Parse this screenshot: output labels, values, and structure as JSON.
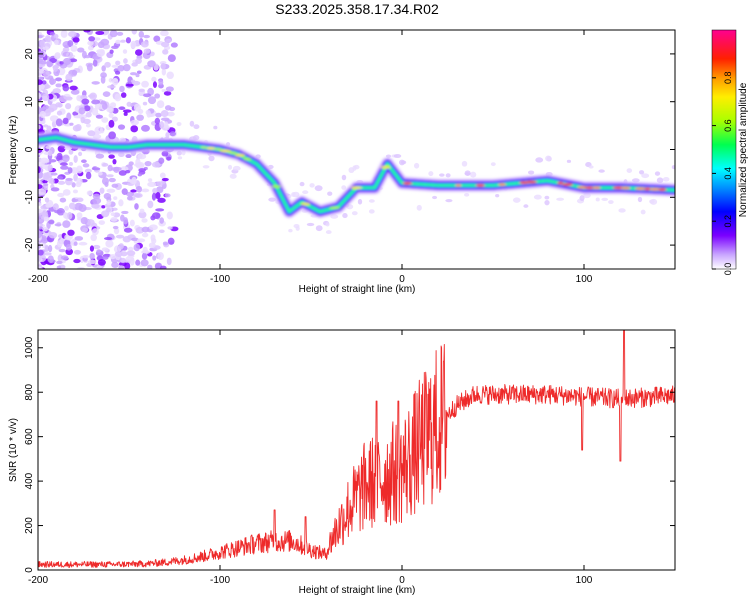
{
  "title": "S233.2025.358.17.34.R02",
  "chart_data": [
    {
      "type": "heatmap",
      "name": "spectrogram",
      "xlabel": "Height of straight line (km)",
      "ylabel": "Frequency (Hz)",
      "xlim": [
        -200,
        150
      ],
      "ylim": [
        -25,
        25
      ],
      "xticks": [
        -200,
        -100,
        0,
        100
      ],
      "yticks": [
        -20,
        -10,
        0,
        10,
        20
      ],
      "colorbar": {
        "label": "Normalized spectral amplitude",
        "range": [
          0,
          1
        ],
        "ticks": [
          0.0,
          0.2,
          0.4,
          0.6,
          0.8
        ]
      },
      "ridge": [
        {
          "x": -200,
          "y": 2.0
        },
        {
          "x": -190,
          "y": 2.5
        },
        {
          "x": -180,
          "y": 1.5
        },
        {
          "x": -170,
          "y": 1.0
        },
        {
          "x": -160,
          "y": 0.5
        },
        {
          "x": -150,
          "y": 0.5
        },
        {
          "x": -140,
          "y": 1.0
        },
        {
          "x": -130,
          "y": 1.0
        },
        {
          "x": -120,
          "y": 1.0
        },
        {
          "x": -110,
          "y": 0.5
        },
        {
          "x": -100,
          "y": 0.0
        },
        {
          "x": -90,
          "y": -1.0
        },
        {
          "x": -80,
          "y": -3.0
        },
        {
          "x": -70,
          "y": -7.0
        },
        {
          "x": -62,
          "y": -13.0
        },
        {
          "x": -55,
          "y": -11.0
        },
        {
          "x": -45,
          "y": -13.0
        },
        {
          "x": -35,
          "y": -12.0
        },
        {
          "x": -25,
          "y": -8.0
        },
        {
          "x": -15,
          "y": -8.0
        },
        {
          "x": -8,
          "y": -3.0
        },
        {
          "x": 0,
          "y": -7.0
        },
        {
          "x": 20,
          "y": -7.5
        },
        {
          "x": 50,
          "y": -7.5
        },
        {
          "x": 80,
          "y": -6.5
        },
        {
          "x": 100,
          "y": -8.0
        },
        {
          "x": 120,
          "y": -8.0
        },
        {
          "x": 150,
          "y": -8.5
        }
      ]
    },
    {
      "type": "line",
      "name": "snr",
      "xlabel": "Height of straight line (km)",
      "ylabel": "SNR (10 * v/v)",
      "xlim": [
        -200,
        150
      ],
      "ylim": [
        0,
        1080
      ],
      "xticks": [
        -200,
        -100,
        0,
        100
      ],
      "yticks": [
        0,
        200,
        400,
        600,
        800,
        1000
      ],
      "color": "#ee2a2a",
      "envelope": [
        {
          "x": -200,
          "y": 25
        },
        {
          "x": -180,
          "y": 25
        },
        {
          "x": -160,
          "y": 25
        },
        {
          "x": -140,
          "y": 28
        },
        {
          "x": -130,
          "y": 35
        },
        {
          "x": -120,
          "y": 45
        },
        {
          "x": -110,
          "y": 60
        },
        {
          "x": -100,
          "y": 80
        },
        {
          "x": -90,
          "y": 100
        },
        {
          "x": -80,
          "y": 120
        },
        {
          "x": -70,
          "y": 130
        },
        {
          "x": -60,
          "y": 130
        },
        {
          "x": -50,
          "y": 90
        },
        {
          "x": -42,
          "y": 70
        },
        {
          "x": -38,
          "y": 150
        },
        {
          "x": -30,
          "y": 270
        },
        {
          "x": -20,
          "y": 380
        },
        {
          "x": -10,
          "y": 420
        },
        {
          "x": 0,
          "y": 450
        },
        {
          "x": 10,
          "y": 560
        },
        {
          "x": 20,
          "y": 660
        },
        {
          "x": 30,
          "y": 740
        },
        {
          "x": 40,
          "y": 790
        },
        {
          "x": 60,
          "y": 790
        },
        {
          "x": 80,
          "y": 790
        },
        {
          "x": 100,
          "y": 780
        },
        {
          "x": 120,
          "y": 770
        },
        {
          "x": 140,
          "y": 780
        },
        {
          "x": 150,
          "y": 785
        }
      ],
      "spikes": [
        {
          "x": -70,
          "y": 270
        },
        {
          "x": -53,
          "y": 240
        },
        {
          "x": -14,
          "y": 760
        },
        {
          "x": -2,
          "y": 760
        },
        {
          "x": 99,
          "y": 540
        },
        {
          "x": 120,
          "y": 490
        },
        {
          "x": 122,
          "y": 1080
        }
      ]
    }
  ]
}
